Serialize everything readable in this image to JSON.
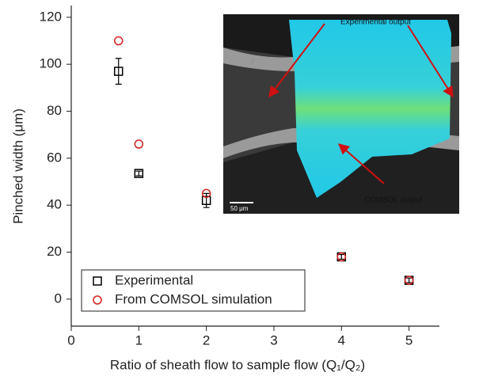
{
  "chart_data": {
    "type": "scatter",
    "x_label": "Ratio of sheath flow to sample flow (Q₁/Q₂)",
    "y_label": "Pinched width (μm)",
    "xlim": [
      0,
      5.45
    ],
    "ylim": [
      -11.5,
      125
    ],
    "xticks": [
      0,
      1,
      2,
      3,
      4,
      5
    ],
    "yticks": [
      0,
      20,
      40,
      60,
      80,
      100,
      120
    ],
    "legend": "lower left",
    "series": [
      {
        "name": "Experimental",
        "color": "#000000",
        "marker": "square",
        "x": [
          0.7,
          1,
          2,
          4,
          5
        ],
        "values": [
          97,
          53.5,
          42,
          18,
          8
        ],
        "errors": [
          5.5,
          1,
          3,
          1,
          1
        ]
      },
      {
        "name": "From COMSOL simulation",
        "color": "#d62020",
        "marker": "circle",
        "x": [
          0.7,
          1,
          2,
          4,
          5
        ],
        "values": [
          110,
          66,
          45,
          18,
          8
        ]
      }
    ],
    "inset": {
      "experimental_label": "Experimental output",
      "comsol_label": "COMSOL output",
      "scale_bar": "50 μm"
    }
  }
}
